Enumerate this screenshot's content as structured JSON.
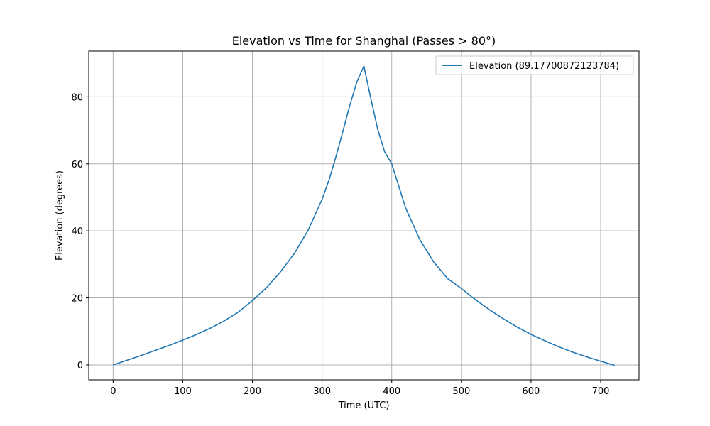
{
  "chart_data": {
    "type": "line",
    "title": "Elevation vs Time for Shanghai (Passes > 80°)",
    "xlabel": "Time (UTC)",
    "ylabel": "Elevation (degrees)",
    "xlim": [
      -35,
      755
    ],
    "ylim": [
      -4.46,
      93.64
    ],
    "xticks": [
      0,
      100,
      200,
      300,
      400,
      500,
      600,
      700
    ],
    "yticks": [
      0,
      20,
      40,
      60,
      80
    ],
    "grid": true,
    "legend_position": "top-right",
    "series": [
      {
        "name": "Elevation (89.17700872123784)",
        "color": "#1f77b4",
        "x": [
          0,
          20,
          40,
          60,
          80,
          100,
          120,
          140,
          160,
          180,
          200,
          220,
          240,
          260,
          280,
          300,
          310,
          320,
          330,
          340,
          350,
          360,
          370,
          380,
          390,
          400,
          420,
          440,
          460,
          480,
          500,
          520,
          540,
          560,
          580,
          600,
          620,
          640,
          660,
          680,
          700,
          720
        ],
        "y": [
          0.0,
          1.4,
          2.8,
          4.3,
          5.8,
          7.4,
          9.1,
          11.0,
          13.2,
          15.8,
          19.2,
          23.0,
          27.7,
          33.2,
          40.2,
          49.4,
          55.2,
          62.2,
          69.8,
          77.6,
          84.5,
          89.18,
          79.5,
          70.2,
          63.5,
          60.0,
          46.8,
          37.5,
          30.8,
          25.8,
          22.8,
          19.5,
          16.5,
          13.8,
          11.3,
          9.1,
          7.2,
          5.4,
          3.8,
          2.4,
          1.1,
          -0.1
        ]
      }
    ]
  }
}
